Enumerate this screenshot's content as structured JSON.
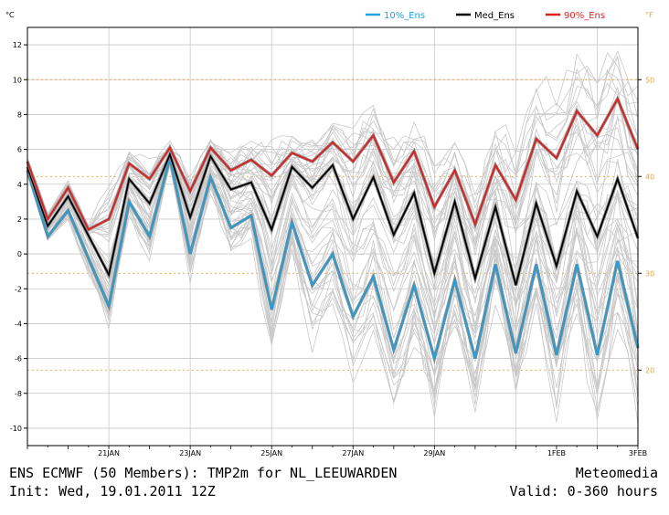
{
  "footer": {
    "title": "ENS ECMWF (50 Members): TMP2m for NL_LEEUWARDEN",
    "brand": "Meteomedia",
    "init": "Init: Wed, 19.01.2011 12Z",
    "valid": "Valid: 0-360 hours"
  },
  "chart_data": {
    "type": "line",
    "x_unit": "hours since init (6-hourly steps)",
    "x": [
      0,
      6,
      12,
      18,
      24,
      30,
      36,
      42,
      48,
      54,
      60,
      66,
      72,
      78,
      84,
      90,
      96,
      102,
      108,
      114,
      120,
      126,
      132,
      138,
      144,
      150,
      156,
      162,
      168,
      174,
      180,
      186,
      192,
      198,
      204,
      210,
      216,
      222,
      228,
      234,
      240,
      246,
      252,
      258,
      264,
      270,
      276,
      282,
      288,
      294,
      300,
      306,
      312,
      318,
      324,
      330,
      336,
      342,
      348,
      354,
      360
    ],
    "unit_left_label": "°C",
    "unit_right_label": "°F",
    "ylim": [
      -11,
      13
    ],
    "yticks": [
      -10,
      -8,
      -6,
      -4,
      -2,
      0,
      2,
      4,
      6,
      8,
      10,
      12
    ],
    "fticks": [
      20,
      30,
      40,
      50
    ],
    "xtick_labels": [
      {
        "hour": 48,
        "label": "21JAN"
      },
      {
        "hour": 96,
        "label": "23JAN"
      },
      {
        "hour": 144,
        "label": "25JAN"
      },
      {
        "hour": 192,
        "label": "27JAN"
      },
      {
        "hour": 240,
        "label": "29JAN"
      },
      {
        "hour": 312,
        "label": "1FEB"
      },
      {
        "hour": 360,
        "label": "3FEB"
      }
    ],
    "grid_x_hours": [
      0,
      48,
      96,
      144,
      192,
      240,
      288,
      336
    ],
    "legend": [
      {
        "name": "10%_Ens",
        "color": "#1ea0dc"
      },
      {
        "name": "Med_Ens",
        "color": "#000000"
      },
      {
        "name": "90%_Ens",
        "color": "#e11e1e"
      }
    ],
    "series": [
      {
        "name": "10%_Ens",
        "color": "#1ea0dc",
        "points": [
          [
            0,
            4.8
          ],
          [
            12,
            1.0
          ],
          [
            24,
            2.5
          ],
          [
            48,
            -3.0
          ],
          [
            60,
            3.0
          ],
          [
            72,
            1.0
          ],
          [
            84,
            5.5
          ],
          [
            96,
            0.0
          ],
          [
            108,
            4.4
          ],
          [
            120,
            1.5
          ],
          [
            132,
            2.2
          ],
          [
            144,
            -3.2
          ],
          [
            156,
            1.8
          ],
          [
            168,
            -1.8
          ],
          [
            180,
            0.0
          ],
          [
            192,
            -3.6
          ],
          [
            204,
            -1.3
          ],
          [
            216,
            -5.5
          ],
          [
            228,
            -1.8
          ],
          [
            240,
            -6.0
          ],
          [
            252,
            -1.5
          ],
          [
            264,
            -6.0
          ],
          [
            276,
            -0.6
          ],
          [
            288,
            -5.7
          ],
          [
            300,
            -0.6
          ],
          [
            312,
            -5.8
          ],
          [
            324,
            -0.6
          ],
          [
            336,
            -5.8
          ],
          [
            348,
            -0.4
          ],
          [
            360,
            -5.4
          ]
        ]
      },
      {
        "name": "Med_Ens",
        "color": "#000000",
        "points": [
          [
            0,
            5.0
          ],
          [
            12,
            1.6
          ],
          [
            24,
            3.3
          ],
          [
            48,
            -1.2
          ],
          [
            60,
            4.3
          ],
          [
            72,
            2.9
          ],
          [
            84,
            5.7
          ],
          [
            96,
            2.1
          ],
          [
            108,
            5.6
          ],
          [
            120,
            3.7
          ],
          [
            132,
            4.1
          ],
          [
            144,
            1.4
          ],
          [
            156,
            5.0
          ],
          [
            168,
            3.8
          ],
          [
            180,
            5.1
          ],
          [
            192,
            2.0
          ],
          [
            204,
            4.4
          ],
          [
            216,
            1.1
          ],
          [
            228,
            3.5
          ],
          [
            240,
            -1.1
          ],
          [
            252,
            3.0
          ],
          [
            264,
            -1.4
          ],
          [
            276,
            2.7
          ],
          [
            288,
            -1.8
          ],
          [
            300,
            2.9
          ],
          [
            312,
            -0.7
          ],
          [
            324,
            3.6
          ],
          [
            336,
            1.0
          ],
          [
            348,
            4.3
          ],
          [
            360,
            0.9
          ]
        ]
      },
      {
        "name": "90%_Ens",
        "color": "#e11e1e",
        "points": [
          [
            0,
            5.3
          ],
          [
            12,
            2.0
          ],
          [
            24,
            3.8
          ],
          [
            36,
            1.4
          ],
          [
            48,
            2.0
          ],
          [
            60,
            5.2
          ],
          [
            72,
            4.3
          ],
          [
            84,
            6.1
          ],
          [
            96,
            3.6
          ],
          [
            108,
            6.1
          ],
          [
            120,
            4.8
          ],
          [
            132,
            5.4
          ],
          [
            144,
            4.5
          ],
          [
            156,
            5.8
          ],
          [
            168,
            5.3
          ],
          [
            180,
            6.4
          ],
          [
            192,
            5.3
          ],
          [
            204,
            6.8
          ],
          [
            216,
            4.1
          ],
          [
            228,
            5.9
          ],
          [
            240,
            2.7
          ],
          [
            252,
            4.8
          ],
          [
            264,
            1.7
          ],
          [
            276,
            5.1
          ],
          [
            288,
            3.1
          ],
          [
            300,
            6.6
          ],
          [
            312,
            5.5
          ],
          [
            324,
            8.2
          ],
          [
            336,
            6.8
          ],
          [
            348,
            8.9
          ],
          [
            360,
            6.0
          ]
        ]
      }
    ]
  }
}
